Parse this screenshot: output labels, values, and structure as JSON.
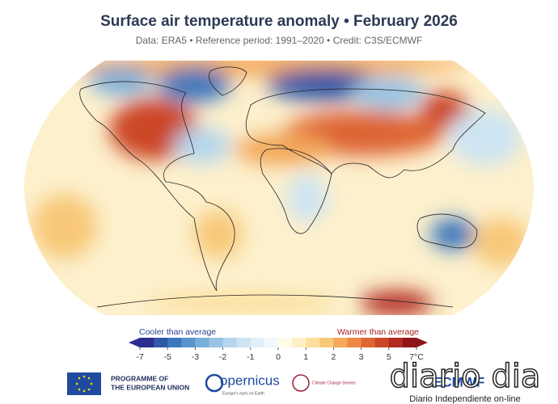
{
  "header": {
    "title": "Surface air temperature anomaly • February 2026",
    "subtitle": "Data: ERA5 • Reference period: 1991–2020 • Credit: C3S/ECMWF"
  },
  "colorbar": {
    "left_label": "Cooler than average",
    "right_label": "Warmer than average",
    "ticks": [
      -7,
      -5,
      -3,
      -2,
      -1,
      0,
      1,
      2,
      3,
      5,
      {
        "value": 7,
        "label": "7°C"
      }
    ],
    "colors": [
      "#2a2c8f",
      "#3158a8",
      "#3d78bd",
      "#5a94cc",
      "#7aaed9",
      "#98c3e4",
      "#b3d6ee",
      "#cde4f3",
      "#e2eff8",
      "#f2f8fc",
      "#fffbe6",
      "#fdf0c4",
      "#fbdf9a",
      "#f8c878",
      "#f3a85a",
      "#ec8744",
      "#de6534",
      "#cc4628",
      "#b32a20",
      "#8e1619"
    ]
  },
  "footer": {
    "eu_line1": "PROGRAMME OF",
    "eu_line2": "THE EUROPEAN UNION",
    "copernicus": "opernicus",
    "copernicus_tagline": "Europe's eyes on Earth",
    "c3s": "Climate Change Service",
    "ecmwf": "ECMWF",
    "watermark": "diario dia",
    "watermark_tagline": "Diario Independiente on-line"
  }
}
